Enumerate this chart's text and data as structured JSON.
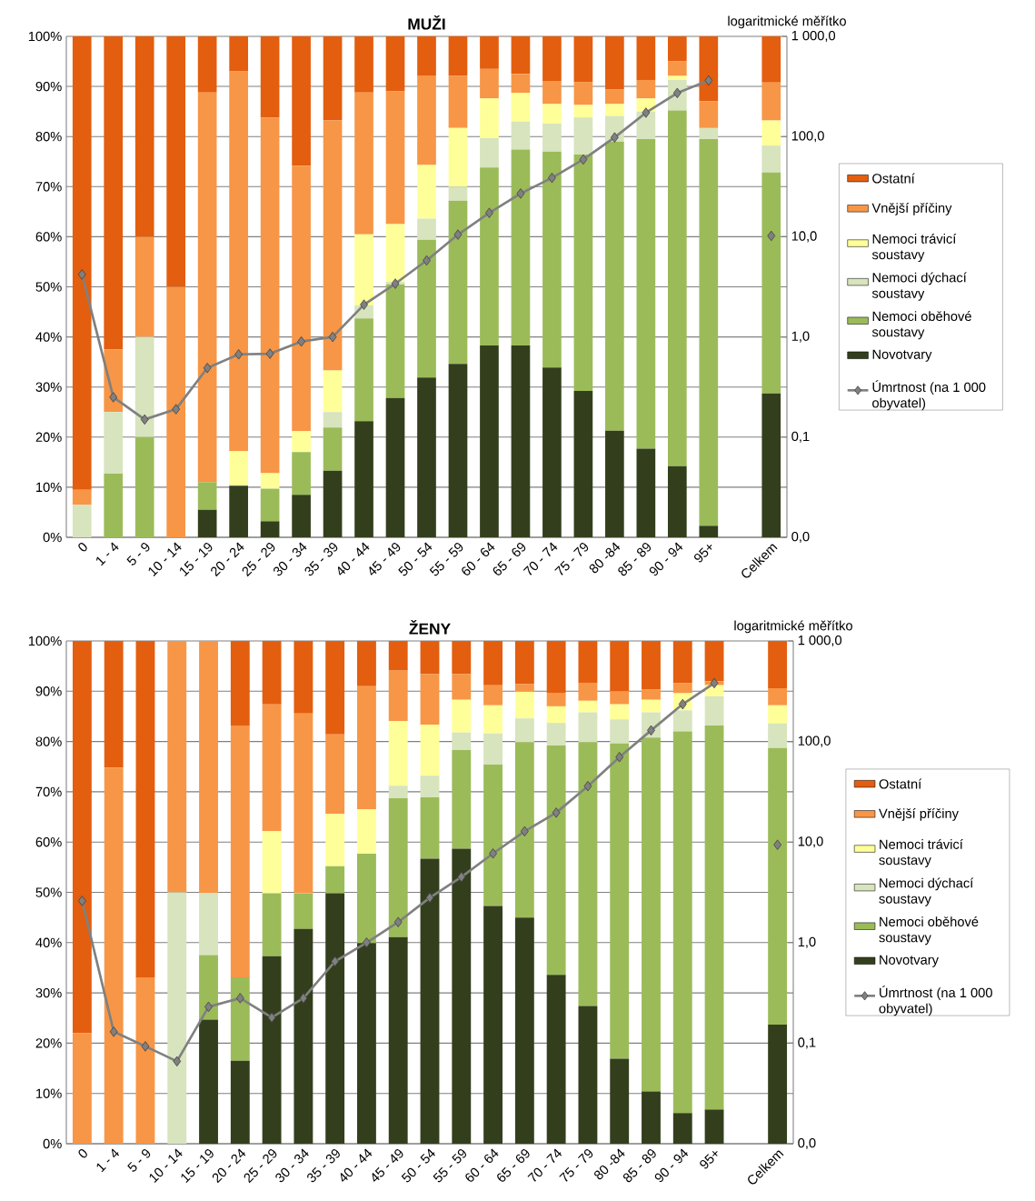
{
  "chart_data": [
    {
      "type": "bar",
      "stacked": true,
      "title": "MUŽI",
      "y2label": "logaritmické měřítko",
      "grid": "y",
      "legend": "right",
      "marker": "diamond",
      "log": "y2",
      "categories": [
        "0",
        "1 - 4",
        "5 - 9",
        "10 - 14",
        "15 - 19",
        "20 - 24",
        "25 - 29",
        "30 - 34",
        "35 - 39",
        "40 - 44",
        "45 - 49",
        "50 - 54",
        "55 - 59",
        "60 - 64",
        "65 - 69",
        "70 - 74",
        "75 - 79",
        "80 -84",
        "85 - 89",
        "90 - 94",
        "95+",
        null,
        "Celkem"
      ],
      "ylim": [
        0,
        100
      ],
      "yticks": [
        {
          "value": 0,
          "label": "0%"
        },
        {
          "value": 10,
          "label": "10%"
        },
        {
          "value": 20,
          "label": "20%"
        },
        {
          "value": 30,
          "label": "30%"
        },
        {
          "value": 40,
          "label": "40%"
        },
        {
          "value": 50,
          "label": "50%"
        },
        {
          "value": 60,
          "label": "60%"
        },
        {
          "value": 70,
          "label": "70%"
        },
        {
          "value": 80,
          "label": "80%"
        },
        {
          "value": 90,
          "label": "90%"
        },
        {
          "value": 100,
          "label": "100%"
        }
      ],
      "y2lim": [
        0.01,
        1000
      ],
      "y2ticks": [
        {
          "value": 0.01,
          "label": "0,0"
        },
        {
          "value": 0.1,
          "label": "0,1"
        },
        {
          "value": 1,
          "label": "1,0"
        },
        {
          "value": 10,
          "label": "10,0"
        },
        {
          "value": 100,
          "label": "100,0"
        },
        {
          "value": 1000,
          "label": "1 000,0"
        }
      ],
      "series": [
        {
          "name": "Novotvary",
          "color": "#333f1c",
          "values": [
            0,
            0,
            0,
            0,
            5.5,
            10.3,
            3.2,
            8.5,
            13.3,
            23.2,
            27.8,
            31.9,
            34.6,
            38.3,
            38.3,
            33.9,
            29.2,
            21.3,
            17.7,
            14.2,
            2.3,
            null,
            28.7
          ]
        },
        {
          "name": "Nemoci oběhové soustavy",
          "color": "#9bbb59",
          "values": [
            0,
            12.7,
            20,
            0,
            5.5,
            0,
            6.5,
            8.5,
            8.6,
            20.5,
            22.7,
            27.5,
            32.6,
            35.5,
            39.1,
            43.1,
            47.2,
            57.7,
            61.8,
            71,
            77.2,
            null,
            44.1
          ]
        },
        {
          "name": "Nemoci dýchací soustavy",
          "color": "#d7e4bd",
          "values": [
            6.5,
            12.3,
            20,
            0,
            0,
            0,
            0,
            0,
            3.1,
            2.6,
            0.5,
            4.2,
            2.8,
            5.9,
            5.6,
            5.6,
            7.4,
            5.1,
            5.5,
            6.1,
            2.2,
            null,
            5.4
          ]
        },
        {
          "name": "Nemoci trávicí soustavy",
          "color": "#ffff99",
          "values": [
            0,
            0,
            0,
            0,
            0,
            6.9,
            3.1,
            4.2,
            8.3,
            14.2,
            11.5,
            10.7,
            11.7,
            7.9,
            5.7,
            3.9,
            2.5,
            2.4,
            2.6,
            0.8,
            0,
            null,
            5
          ]
        },
        {
          "name": "Vnější příčiny",
          "color": "#f79646",
          "values": [
            3,
            12.5,
            20,
            50,
            77.8,
            75.8,
            71,
            53,
            49.9,
            28.3,
            26.5,
            17.9,
            10.4,
            5.9,
            3.8,
            4.6,
            4.6,
            2.9,
            3.7,
            2.9,
            5.3,
            null,
            7.6
          ]
        },
        {
          "name": "Ostatní",
          "color": "#e35e0e",
          "values": [
            90.5,
            62.5,
            40,
            50,
            11.2,
            7,
            16.2,
            25.8,
            16.8,
            11.2,
            11,
            7.8,
            7.9,
            6.5,
            7.5,
            8.9,
            9.1,
            10.6,
            8.7,
            5,
            13,
            null,
            9.2
          ]
        },
        {
          "name": "Úmrtnost (na 1 000 obyvatel)",
          "type": "line",
          "axis": "y2",
          "color": "#808080",
          "values": [
            4.2,
            0.25,
            0.15,
            0.19,
            0.49,
            0.67,
            0.68,
            0.9,
            1.0,
            2.1,
            3.4,
            5.8,
            10.5,
            17.3,
            27,
            38.7,
            59,
            98,
            173,
            272,
            363,
            null,
            10.2
          ]
        }
      ]
    },
    {
      "type": "bar",
      "stacked": true,
      "title": "ŽENY",
      "y2label": "logaritmické měřítko",
      "grid": "y",
      "legend": "right",
      "marker": "diamond",
      "log": "y2",
      "categories": [
        "0",
        "1 - 4",
        "5 - 9",
        "10 - 14",
        "15 - 19",
        "20 - 24",
        "25 - 29",
        "30 - 34",
        "35 - 39",
        "40 - 44",
        "45 - 49",
        "50 - 54",
        "55 - 59",
        "60 - 64",
        "65 - 69",
        "70 - 74",
        "75 - 79",
        "80 -84",
        "85 - 89",
        "90 - 94",
        "95+",
        null,
        "Celkem"
      ],
      "ylim": [
        0,
        100
      ],
      "yticks": [
        {
          "value": 0,
          "label": "0%"
        },
        {
          "value": 10,
          "label": "10%"
        },
        {
          "value": 20,
          "label": "20%"
        },
        {
          "value": 30,
          "label": "30%"
        },
        {
          "value": 40,
          "label": "40%"
        },
        {
          "value": 50,
          "label": "50%"
        },
        {
          "value": 60,
          "label": "60%"
        },
        {
          "value": 70,
          "label": "70%"
        },
        {
          "value": 80,
          "label": "80%"
        },
        {
          "value": 90,
          "label": "90%"
        },
        {
          "value": 100,
          "label": "100%"
        }
      ],
      "y2lim": [
        0.01,
        1000
      ],
      "y2ticks": [
        {
          "value": 0.01,
          "label": "0,0"
        },
        {
          "value": 0.1,
          "label": "0,1"
        },
        {
          "value": 1,
          "label": "1,0"
        },
        {
          "value": 10,
          "label": "10,0"
        },
        {
          "value": 100,
          "label": "100,0"
        },
        {
          "value": 1000,
          "label": "1 000,0"
        }
      ],
      "series": [
        {
          "name": "Novotvary",
          "color": "#333f1c",
          "values": [
            0,
            0,
            0,
            0,
            24.7,
            16.5,
            37.3,
            42.7,
            49.8,
            39.9,
            41.1,
            56.7,
            58.7,
            47.3,
            45,
            33.6,
            27.4,
            16.9,
            10.4,
            6.1,
            6.8,
            null,
            23.7
          ]
        },
        {
          "name": "Nemoci oběhové soustavy",
          "color": "#9bbb59",
          "values": [
            0,
            0,
            0,
            0,
            12.8,
            16.6,
            12.5,
            7.1,
            5.4,
            17.8,
            27.6,
            12.2,
            19.6,
            28.1,
            34.9,
            45.6,
            52.5,
            62.7,
            70.4,
            75.9,
            76.4,
            null,
            55
          ]
        },
        {
          "name": "Nemoci dýchací soustavy",
          "color": "#d7e4bd",
          "values": [
            0,
            0,
            0,
            50,
            12.3,
            0,
            0,
            0,
            0,
            0,
            2.5,
            4.3,
            3.5,
            6.2,
            4.7,
            4.5,
            5.9,
            4.8,
            5,
            4.2,
            5.8,
            null,
            4.9
          ]
        },
        {
          "name": "Nemoci trávicí soustavy",
          "color": "#ffff99",
          "values": [
            0,
            0,
            0,
            0,
            0,
            0,
            12.4,
            0,
            10.4,
            8.8,
            12.9,
            10.1,
            6.5,
            5.6,
            5.3,
            3.3,
            2.3,
            3,
            2.5,
            3.4,
            2.2,
            null,
            3.6
          ]
        },
        {
          "name": "Vnější příčiny",
          "color": "#f79646",
          "values": [
            22,
            74.8,
            33.1,
            50,
            50.2,
            50.1,
            25.2,
            35.8,
            15.8,
            24.5,
            10,
            10.1,
            5.1,
            4,
            1.5,
            2.7,
            3.6,
            2.6,
            2.1,
            2,
            0.8,
            null,
            3.4
          ]
        },
        {
          "name": "Ostatní",
          "color": "#e35e0e",
          "values": [
            78,
            25.2,
            66.9,
            0,
            0,
            16.8,
            12.6,
            14.4,
            18.6,
            9,
            5.9,
            6.6,
            6.6,
            8.8,
            8.6,
            10.3,
            8.3,
            10,
            9.6,
            8.4,
            8,
            null,
            9.4
          ]
        },
        {
          "name": "Úmrtnost (na 1 000 obyvatel)",
          "type": "line",
          "axis": "y2",
          "color": "#808080",
          "values": [
            2.6,
            0.13,
            0.093,
            0.066,
            0.23,
            0.28,
            0.18,
            0.28,
            0.65,
            1.0,
            1.6,
            2.8,
            4.5,
            7.7,
            12.8,
            19.6,
            36,
            70,
            129,
            235,
            381,
            null,
            9.4
          ]
        }
      ]
    }
  ]
}
